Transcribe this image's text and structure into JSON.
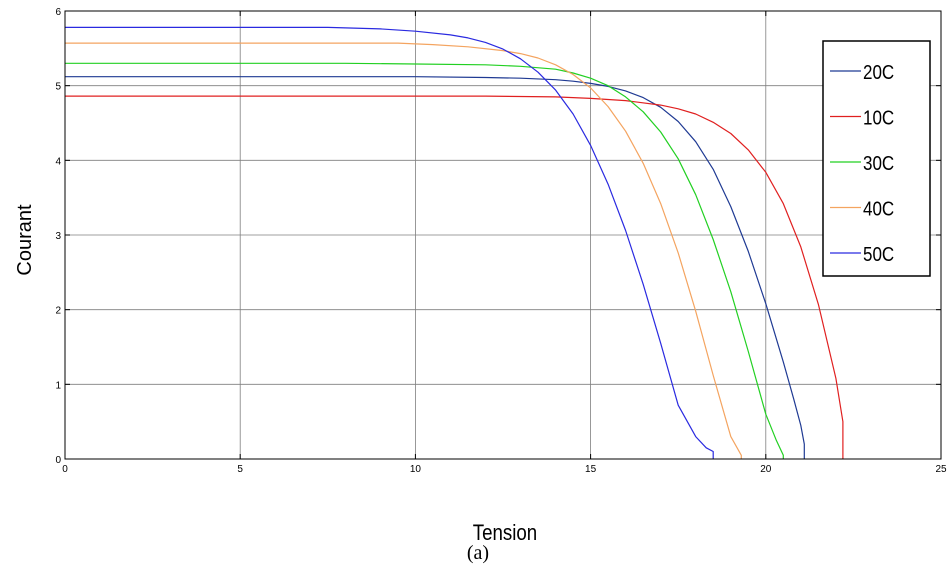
{
  "chart_data": {
    "type": "line",
    "title": "",
    "xlabel": "Tension",
    "ylabel": "Courant",
    "xlim": [
      0,
      25
    ],
    "ylim": [
      0,
      6
    ],
    "xticks": [
      "0",
      "5",
      "10",
      "15",
      "20",
      "25"
    ],
    "yticks": [
      "0",
      "1",
      "2",
      "3",
      "4",
      "5",
      "6"
    ],
    "grid": true,
    "legend_position": "top-right",
    "series": [
      {
        "name": "20C",
        "color": "#1f3a93",
        "x": [
          0,
          4,
          8,
          10,
          12,
          13,
          14,
          14.5,
          15,
          15.5,
          16,
          16.5,
          17,
          17.5,
          18,
          18.5,
          19,
          19.5,
          20,
          20.5,
          20.8,
          21.0,
          21.1,
          21.1
        ],
        "y": [
          5.12,
          5.12,
          5.12,
          5.12,
          5.11,
          5.1,
          5.08,
          5.06,
          5.03,
          4.99,
          4.93,
          4.84,
          4.71,
          4.52,
          4.25,
          3.88,
          3.38,
          2.78,
          2.08,
          1.3,
          0.8,
          0.45,
          0.2,
          0.0
        ]
      },
      {
        "name": "10C",
        "color": "#e02020",
        "x": [
          0,
          4,
          8,
          12,
          14,
          15,
          16,
          17,
          17.5,
          18,
          18.5,
          19,
          19.5,
          20,
          20.5,
          21,
          21.5,
          22,
          22.2,
          22.2
        ],
        "y": [
          4.86,
          4.86,
          4.86,
          4.86,
          4.85,
          4.83,
          4.8,
          4.74,
          4.69,
          4.62,
          4.51,
          4.36,
          4.14,
          3.84,
          3.42,
          2.84,
          2.07,
          1.08,
          0.5,
          0.0
        ]
      },
      {
        "name": "30C",
        "color": "#22d022",
        "x": [
          0,
          4,
          8,
          10,
          12,
          13,
          14,
          14.5,
          15,
          15.5,
          16,
          16.5,
          17,
          17.5,
          18,
          18.5,
          19,
          19.5,
          20,
          20.3,
          20.5,
          20.5
        ],
        "y": [
          5.3,
          5.3,
          5.3,
          5.29,
          5.28,
          5.26,
          5.22,
          5.17,
          5.1,
          5.0,
          4.85,
          4.65,
          4.38,
          4.02,
          3.54,
          2.94,
          2.24,
          1.44,
          0.6,
          0.25,
          0.05,
          0.0
        ]
      },
      {
        "name": "40C",
        "color": "#f4a460",
        "x": [
          0,
          4,
          8,
          9.5,
          10.5,
          11.5,
          12.5,
          13,
          13.5,
          14,
          14.5,
          15,
          15.5,
          16,
          16.5,
          17,
          17.5,
          18,
          18.5,
          19,
          19.3,
          19.3
        ],
        "y": [
          5.57,
          5.57,
          5.57,
          5.57,
          5.55,
          5.52,
          5.47,
          5.43,
          5.37,
          5.28,
          5.15,
          4.97,
          4.72,
          4.39,
          3.96,
          3.42,
          2.76,
          1.98,
          1.12,
          0.3,
          0.05,
          0.0
        ]
      },
      {
        "name": "50C",
        "color": "#2a2ae0",
        "x": [
          0,
          4,
          7.5,
          9,
          10,
          11,
          11.5,
          12,
          12.5,
          13,
          13.5,
          14,
          14.5,
          15,
          15.5,
          16,
          16.5,
          17,
          17.5,
          18,
          18.3,
          18.5,
          18.5
        ],
        "y": [
          5.78,
          5.78,
          5.78,
          5.76,
          5.73,
          5.68,
          5.64,
          5.58,
          5.49,
          5.36,
          5.18,
          4.94,
          4.62,
          4.2,
          3.68,
          3.06,
          2.34,
          1.55,
          0.72,
          0.3,
          0.15,
          0.1,
          0.0
        ]
      }
    ]
  },
  "caption": "(a)"
}
